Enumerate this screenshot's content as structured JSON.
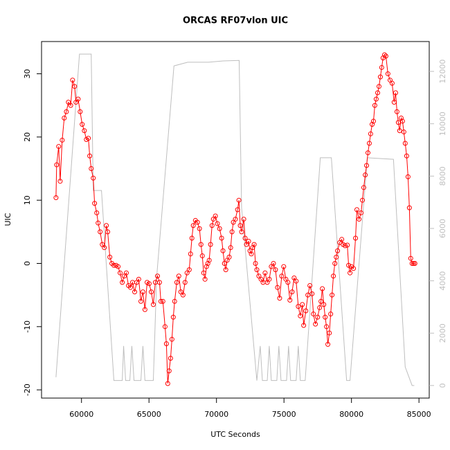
{
  "chart_data": {
    "type": "line",
    "title": "ORCAS RF07vlon UIC",
    "x_label": "UTC Seconds",
    "y_label": "UIC",
    "xlim": [
      57040,
      85760
    ],
    "xticks": [
      60000,
      65000,
      70000,
      75000,
      80000,
      85000
    ],
    "ylim": [
      -21.3,
      35.1
    ],
    "yticks": [
      -20,
      -10,
      0,
      10,
      20,
      30
    ],
    "y2lim": [
      -480,
      13140
    ],
    "y2ticks": [
      0,
      2000,
      4000,
      6000,
      8000,
      10000,
      12000
    ],
    "y2_color": "#bebebe",
    "series": [
      {
        "color": "#ff0000",
        "markers": true,
        "x": [
          58110,
          58160,
          58310,
          58420,
          58570,
          58720,
          58880,
          59030,
          59200,
          59340,
          59490,
          59590,
          59750,
          59900,
          60050,
          60210,
          60360,
          60510,
          60610,
          60720,
          60870,
          60970,
          61130,
          61230,
          61380,
          61540,
          61690,
          61840,
          61940,
          62100,
          62250,
          62400,
          62560,
          62710,
          62860,
          63020,
          63170,
          63320,
          63480,
          63630,
          63780,
          63940,
          64090,
          64240,
          64400,
          64550,
          64700,
          64860,
          65010,
          65170,
          65320,
          65470,
          65630,
          65780,
          65880,
          66030,
          66190,
          66290,
          66390,
          66490,
          66600,
          66700,
          66800,
          66900,
          67060,
          67210,
          67360,
          67520,
          67670,
          67820,
          67980,
          68080,
          68180,
          68280,
          68440,
          68590,
          68740,
          68850,
          68950,
          69050,
          69150,
          69260,
          69360,
          69460,
          69560,
          69670,
          69770,
          69920,
          70070,
          70230,
          70380,
          70480,
          70590,
          70690,
          70790,
          70940,
          71050,
          71150,
          71250,
          71400,
          71560,
          71660,
          71760,
          71860,
          72020,
          72120,
          72220,
          72380,
          72480,
          72580,
          72680,
          72790,
          72890,
          72990,
          73140,
          73300,
          73450,
          73600,
          73760,
          73910,
          74060,
          74220,
          74370,
          74520,
          74680,
          74830,
          74980,
          75140,
          75290,
          75440,
          75600,
          75750,
          75900,
          76060,
          76210,
          76360,
          76460,
          76620,
          76770,
          76920,
          77080,
          77180,
          77330,
          77490,
          77640,
          77740,
          77840,
          77950,
          78050,
          78150,
          78250,
          78360,
          78460,
          78560,
          78660,
          78770,
          78870,
          78970,
          79130,
          79280,
          79380,
          79530,
          79690,
          79790,
          79890,
          79990,
          80150,
          80300,
          80400,
          80560,
          80710,
          80810,
          80910,
          81020,
          81120,
          81220,
          81320,
          81420,
          81530,
          81630,
          81730,
          81830,
          81940,
          82040,
          82140,
          82240,
          82340,
          82450,
          82550,
          82700,
          82860,
          83010,
          83160,
          83270,
          83370,
          83470,
          83570,
          83680,
          83780,
          83880,
          83980,
          84090,
          84190,
          84290,
          84390,
          84490,
          84600,
          84700
        ],
        "values": [
          10.4,
          15.6,
          18.5,
          13,
          19.5,
          23,
          24,
          25.5,
          25,
          29,
          28,
          25.5,
          26,
          24,
          22,
          21,
          19.6,
          19.8,
          17,
          15,
          13.5,
          9.5,
          8,
          6.4,
          5,
          3,
          2.5,
          6,
          5,
          1,
          0,
          -0.3,
          -0.3,
          -0.5,
          -1.5,
          -3,
          -2,
          -1.5,
          -3.5,
          -3.8,
          -3,
          -4.5,
          -3,
          -2.5,
          -6,
          -4.5,
          -7.3,
          -3,
          -3.2,
          -4.5,
          -6.5,
          -3,
          -2,
          -3,
          -6,
          -6,
          -10,
          -12.7,
          -19,
          -17,
          -15,
          -12,
          -8.5,
          -6,
          -3,
          -2,
          -4.5,
          -5,
          -3,
          -1.5,
          -1,
          1.5,
          4,
          6,
          6.8,
          6.5,
          5.5,
          3,
          1.2,
          -1.5,
          -2.5,
          -0.5,
          0,
          0.5,
          3,
          6,
          7,
          7.5,
          6.3,
          5.5,
          4,
          2,
          0,
          -1,
          0.5,
          1,
          2.5,
          5,
          6.5,
          7,
          8.5,
          10,
          6,
          5,
          7,
          4,
          3,
          3.5,
          2,
          1.5,
          2.5,
          3,
          0,
          -1,
          -2,
          -2.5,
          -3,
          -1.5,
          -3,
          -2.5,
          -0.5,
          0,
          -1,
          -3.8,
          -5.5,
          -2,
          -0.5,
          -2.5,
          -3,
          -5.8,
          -4.5,
          -2.3,
          -2.8,
          -6.8,
          -8.3,
          -6.5,
          -9.8,
          -7.5,
          -5,
          -3.5,
          -4.8,
          -8,
          -9.6,
          -8.5,
          -7,
          -6,
          -4,
          -6.5,
          -8.5,
          -10,
          -12.8,
          -11,
          -8,
          -5,
          -2,
          0,
          1,
          2,
          3.3,
          3.8,
          3,
          2.8,
          2.9,
          -0.3,
          -1.5,
          -0.5,
          -0.8,
          4,
          8.5,
          7,
          8,
          10,
          12,
          14,
          15.5,
          17.5,
          19,
          20.5,
          22,
          22.5,
          25,
          26,
          27,
          28,
          29.5,
          31,
          32.5,
          33,
          32.8,
          30,
          29,
          28.5,
          25.5,
          27,
          24,
          22.3,
          21,
          23,
          22.5,
          20.8,
          19,
          17,
          13.7,
          8.8,
          0.8,
          0,
          0,
          0
        ]
      },
      {
        "color": "#bebebe",
        "axis": "y2",
        "x": [
          58110,
          59850,
          60720,
          60870,
          61480,
          62400,
          63020,
          63120,
          63270,
          63580,
          63730,
          63890,
          64400,
          64550,
          64700,
          65320,
          65570,
          66850,
          67870,
          69400,
          70500,
          71680,
          71860,
          72990,
          73240,
          73400,
          73760,
          73910,
          74060,
          74470,
          74620,
          74780,
          75190,
          75340,
          75490,
          75900,
          76060,
          76210,
          76570,
          77690,
          78510,
          79640,
          79890,
          81170,
          83110,
          83980,
          84490,
          84650
        ],
        "values": [
          317,
          12660,
          12660,
          7450,
          7450,
          190,
          190,
          1510,
          190,
          190,
          1510,
          190,
          190,
          1510,
          190,
          190,
          4150,
          12210,
          12350,
          12350,
          12400,
          12420,
          6790,
          190,
          1510,
          190,
          190,
          1510,
          190,
          190,
          1510,
          190,
          190,
          1510,
          190,
          190,
          1510,
          190,
          190,
          8700,
          8700,
          190,
          190,
          8700,
          8640,
          710,
          0,
          0
        ]
      }
    ]
  }
}
